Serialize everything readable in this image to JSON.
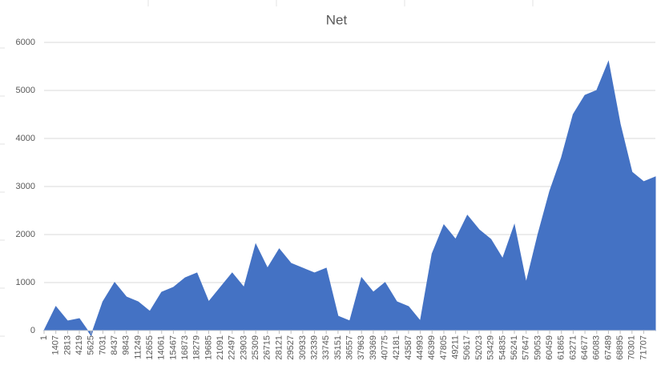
{
  "chart_data": {
    "type": "area",
    "title": "Net",
    "x": [
      1,
      1407,
      2813,
      4219,
      5625,
      7031,
      8437,
      9843,
      11249,
      12655,
      14061,
      15467,
      16873,
      18279,
      19685,
      21091,
      22497,
      23903,
      25309,
      26715,
      28121,
      29527,
      30933,
      32339,
      33745,
      35151,
      36557,
      37963,
      39369,
      40775,
      42181,
      43587,
      44993,
      46399,
      47805,
      49211,
      50617,
      52023,
      53429,
      54835,
      56241,
      57647,
      59053,
      60459,
      61865,
      63271,
      64677,
      66083,
      67489,
      68895,
      70301,
      71707,
      73100
    ],
    "values": [
      0,
      500,
      200,
      250,
      -100,
      600,
      1000,
      700,
      600,
      400,
      800,
      900,
      1100,
      1200,
      600,
      900,
      1200,
      900,
      1800,
      1300,
      1700,
      1400,
      1300,
      1200,
      1300,
      300,
      200,
      1100,
      800,
      1000,
      600,
      500,
      200,
      1600,
      2200,
      1900,
      2400,
      2100,
      1900,
      1500,
      2200,
      1000,
      2000,
      2900,
      3600,
      4500,
      4900,
      5000,
      5600,
      4300,
      3300,
      3100,
      3200
    ],
    "color": "#4472c4",
    "xlim": [
      1,
      73100
    ],
    "xticks": [
      1,
      1407,
      2813,
      4219,
      5625,
      7031,
      8437,
      9843,
      11249,
      12655,
      14061,
      15467,
      16873,
      18279,
      19685,
      21091,
      22497,
      23903,
      25309,
      26715,
      28121,
      29527,
      30933,
      32339,
      33745,
      35151,
      36557,
      37963,
      39369,
      40775,
      42181,
      43587,
      44993,
      46399,
      47805,
      49211,
      50617,
      52023,
      53429,
      54835,
      56241,
      57647,
      59053,
      60459,
      61865,
      63271,
      64677,
      66083,
      67489,
      68895,
      70301,
      71707
    ],
    "ylim": [
      0,
      6000
    ],
    "yticks": [
      0,
      1000,
      2000,
      3000,
      4000,
      5000,
      6000
    ],
    "grid": true
  }
}
